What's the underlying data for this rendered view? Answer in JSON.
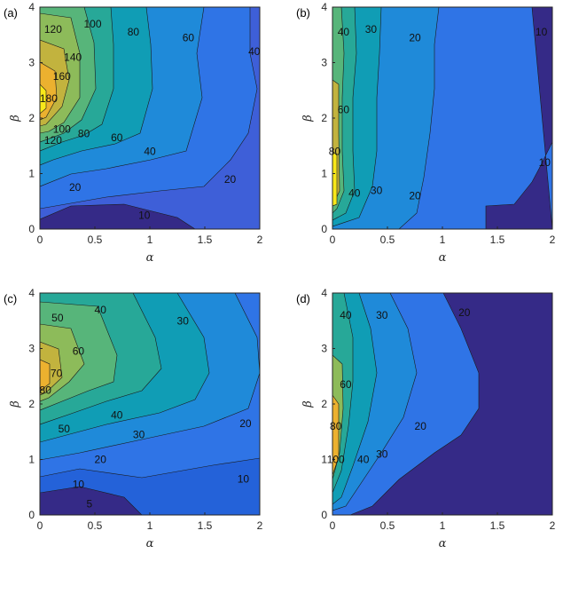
{
  "chart_data": [
    {
      "type": "heatmap",
      "panel_label": "(a)",
      "xlabel": "α",
      "ylabel": "β",
      "xlim": [
        0,
        2
      ],
      "ylim": [
        0,
        4
      ],
      "xticks": [
        "0",
        "0.5",
        "1",
        "1.5",
        "2"
      ],
      "yticks": [
        "0",
        "1",
        "2",
        "3",
        "4"
      ],
      "contour_labels": [
        {
          "text": "10",
          "alpha": 0.95,
          "beta": 0.25
        },
        {
          "text": "20",
          "alpha": 0.32,
          "beta": 0.75
        },
        {
          "text": "20",
          "alpha": 1.73,
          "beta": 0.9
        },
        {
          "text": "40",
          "alpha": 1.0,
          "beta": 1.4
        },
        {
          "text": "60",
          "alpha": 0.7,
          "beta": 1.65
        },
        {
          "text": "80",
          "alpha": 0.4,
          "beta": 1.72
        },
        {
          "text": "100",
          "alpha": 0.2,
          "beta": 1.8
        },
        {
          "text": "120",
          "alpha": 0.12,
          "beta": 1.6
        },
        {
          "text": "180",
          "alpha": 0.08,
          "beta": 2.35
        },
        {
          "text": "160",
          "alpha": 0.2,
          "beta": 2.75
        },
        {
          "text": "140",
          "alpha": 0.3,
          "beta": 3.1
        },
        {
          "text": "120",
          "alpha": 0.12,
          "beta": 3.6
        },
        {
          "text": "100",
          "alpha": 0.48,
          "beta": 3.7
        },
        {
          "text": "80",
          "alpha": 0.85,
          "beta": 3.55
        },
        {
          "text": "60",
          "alpha": 1.35,
          "beta": 3.45
        },
        {
          "text": "40",
          "alpha": 1.95,
          "beta": 3.2
        }
      ]
    },
    {
      "type": "heatmap",
      "panel_label": "(b)",
      "xlabel": "α",
      "ylabel": "β",
      "xlim": [
        0,
        2
      ],
      "ylim": [
        0,
        4
      ],
      "xticks": [
        "0",
        "0.5",
        "1",
        "1.5",
        "2"
      ],
      "yticks": [
        "0",
        "1",
        "2",
        "3",
        "4"
      ],
      "contour_labels": [
        {
          "text": "10",
          "alpha": 1.9,
          "beta": 3.55
        },
        {
          "text": "40",
          "alpha": 0.1,
          "beta": 3.55
        },
        {
          "text": "30",
          "alpha": 0.35,
          "beta": 3.6
        },
        {
          "text": "20",
          "alpha": 0.75,
          "beta": 3.45
        },
        {
          "text": "60",
          "alpha": 0.1,
          "beta": 2.15
        },
        {
          "text": "80",
          "alpha": 0.02,
          "beta": 1.4
        },
        {
          "text": "40",
          "alpha": 0.2,
          "beta": 0.65
        },
        {
          "text": "30",
          "alpha": 0.4,
          "beta": 0.7
        },
        {
          "text": "20",
          "alpha": 0.75,
          "beta": 0.6
        },
        {
          "text": "10",
          "alpha": 1.93,
          "beta": 1.2
        }
      ]
    },
    {
      "type": "heatmap",
      "panel_label": "(c)",
      "xlabel": "α",
      "ylabel": "β",
      "xlim": [
        0,
        2
      ],
      "ylim": [
        0,
        4
      ],
      "xticks": [
        "0",
        "0.5",
        "1",
        "1.5",
        "2"
      ],
      "yticks": [
        "0",
        "1",
        "2",
        "3",
        "4"
      ],
      "contour_labels": [
        {
          "text": "50",
          "alpha": 0.16,
          "beta": 3.55
        },
        {
          "text": "40",
          "alpha": 0.55,
          "beta": 3.7
        },
        {
          "text": "30",
          "alpha": 1.3,
          "beta": 3.5
        },
        {
          "text": "60",
          "alpha": 0.35,
          "beta": 2.95
        },
        {
          "text": "70",
          "alpha": 0.15,
          "beta": 2.55
        },
        {
          "text": "80",
          "alpha": 0.05,
          "beta": 2.25
        },
        {
          "text": "50",
          "alpha": 0.22,
          "beta": 1.55
        },
        {
          "text": "40",
          "alpha": 0.7,
          "beta": 1.8
        },
        {
          "text": "30",
          "alpha": 0.9,
          "beta": 1.45
        },
        {
          "text": "20",
          "alpha": 1.87,
          "beta": 1.65
        },
        {
          "text": "20",
          "alpha": 0.55,
          "beta": 1.0
        },
        {
          "text": "10",
          "alpha": 0.35,
          "beta": 0.55
        },
        {
          "text": "10",
          "alpha": 1.85,
          "beta": 0.65
        },
        {
          "text": "5",
          "alpha": 0.45,
          "beta": 0.2
        }
      ]
    },
    {
      "type": "heatmap",
      "panel_label": "(d)",
      "xlabel": "α",
      "ylabel": "β",
      "xlim": [
        0,
        2
      ],
      "ylim": [
        0,
        4
      ],
      "xticks": [
        "0",
        "0.5",
        "1",
        "1.5",
        "2"
      ],
      "yticks": [
        "0",
        "1",
        "2",
        "3",
        "4"
      ],
      "contour_labels": [
        {
          "text": "40",
          "alpha": 0.12,
          "beta": 3.6
        },
        {
          "text": "30",
          "alpha": 0.45,
          "beta": 3.6
        },
        {
          "text": "20",
          "alpha": 1.2,
          "beta": 3.65
        },
        {
          "text": "60",
          "alpha": 0.12,
          "beta": 2.35
        },
        {
          "text": "80",
          "alpha": 0.03,
          "beta": 1.6
        },
        {
          "text": "100",
          "alpha": 0.03,
          "beta": 1.0
        },
        {
          "text": "40",
          "alpha": 0.28,
          "beta": 1.0
        },
        {
          "text": "30",
          "alpha": 0.45,
          "beta": 1.1
        },
        {
          "text": "20",
          "alpha": 0.8,
          "beta": 1.6
        }
      ]
    }
  ]
}
